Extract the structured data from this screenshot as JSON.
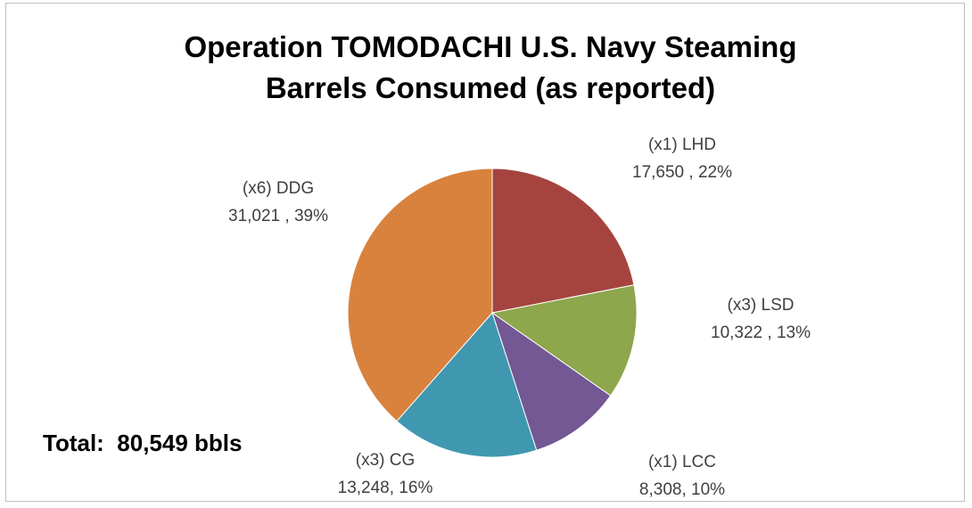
{
  "chart_data": {
    "type": "pie",
    "title": "Operation TOMODACHI U.S. Navy Steaming Barrels Consumed (as reported)",
    "categories": [
      "(x1) LHD",
      "(x3) LSD",
      "(x1) LCC",
      "(x3) CG",
      "(x6) DDG"
    ],
    "values": [
      17650,
      10322,
      8308,
      13248,
      31021
    ],
    "value_labels": [
      "17,650 , 22%",
      "10,322 , 13%",
      "8,308, 10%",
      "13,248, 16%",
      "31,021 , 39%"
    ],
    "colors": [
      "#a5443f",
      "#8ea64c",
      "#735893",
      "#3f98b0",
      "#d9823d"
    ],
    "annotations": [
      "Total:  80,549 bbls"
    ]
  }
}
